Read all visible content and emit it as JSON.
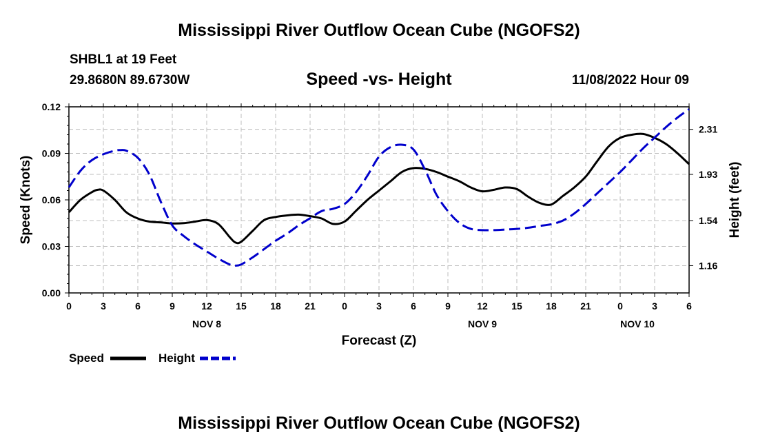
{
  "page": {
    "title": "Mississippi River Outflow Ocean Cube (NGOFS2)",
    "title_repeat": "Mississippi River Outflow Ocean Cube (NGOFS2)",
    "station": "SHBL1 at 19 Feet",
    "location": "29.8680N  89.6730W",
    "date": "11/08/2022 Hour 09"
  },
  "chart_data": {
    "type": "line",
    "title": "Speed -vs- Height",
    "xlabel": "Forecast (Z)",
    "ylabel": "Speed (Knots)",
    "y2label": "Height (feet)",
    "x_range_hours": [
      0,
      54
    ],
    "ylim": [
      0,
      0.12
    ],
    "y2lim": [
      0.93,
      2.5
    ],
    "x_ticks": [
      {
        "hour": 0,
        "label": "0"
      },
      {
        "hour": 3,
        "label": "3"
      },
      {
        "hour": 6,
        "label": "6"
      },
      {
        "hour": 9,
        "label": "9"
      },
      {
        "hour": 12,
        "label": "12"
      },
      {
        "hour": 15,
        "label": "15"
      },
      {
        "hour": 18,
        "label": "18"
      },
      {
        "hour": 21,
        "label": "21"
      },
      {
        "hour": 24,
        "label": "0"
      },
      {
        "hour": 27,
        "label": "3"
      },
      {
        "hour": 30,
        "label": "6"
      },
      {
        "hour": 33,
        "label": "9"
      },
      {
        "hour": 36,
        "label": "12"
      },
      {
        "hour": 39,
        "label": "15"
      },
      {
        "hour": 42,
        "label": "18"
      },
      {
        "hour": 45,
        "label": "21"
      },
      {
        "hour": 48,
        "label": "0"
      },
      {
        "hour": 51,
        "label": "3"
      },
      {
        "hour": 54,
        "label": "6"
      }
    ],
    "date_labels": [
      {
        "hour": 12,
        "label": "NOV 8"
      },
      {
        "hour": 36,
        "label": "NOV 9"
      },
      {
        "hour": 49.5,
        "label": "NOV 10"
      }
    ],
    "y_ticks": [
      {
        "value": 0.0,
        "label": "0.00"
      },
      {
        "value": 0.03,
        "label": "0.03"
      },
      {
        "value": 0.06,
        "label": "0.06"
      },
      {
        "value": 0.09,
        "label": "0.09"
      },
      {
        "value": 0.12,
        "label": "0.12"
      }
    ],
    "y2_ticks": [
      {
        "value": 1.16,
        "label": "1.16"
      },
      {
        "value": 1.54,
        "label": "1.54"
      },
      {
        "value": 1.93,
        "label": "1.93"
      },
      {
        "value": 2.31,
        "label": "2.31"
      }
    ],
    "series": [
      {
        "name": "Speed",
        "axis": "left",
        "color": "#000000",
        "dash": "solid",
        "x": [
          0,
          1,
          2,
          2.5,
          3,
          4,
          5,
          6,
          7,
          8,
          9,
          10,
          11,
          12,
          13,
          14,
          14.5,
          15,
          16,
          17,
          18,
          19,
          20,
          21,
          22,
          23,
          24,
          25,
          26,
          27,
          28,
          29,
          30,
          31,
          32,
          33,
          34,
          35,
          36,
          37,
          38,
          39,
          40,
          41,
          42,
          43,
          44,
          45,
          46,
          47,
          48,
          49,
          50,
          51,
          52,
          53,
          54
        ],
        "values": [
          0.052,
          0.06,
          0.065,
          0.0665,
          0.066,
          0.06,
          0.052,
          0.048,
          0.046,
          0.0455,
          0.0448,
          0.045,
          0.046,
          0.047,
          0.0445,
          0.036,
          0.0325,
          0.033,
          0.04,
          0.047,
          0.049,
          0.05,
          0.0505,
          0.0495,
          0.048,
          0.0445,
          0.046,
          0.053,
          0.06,
          0.066,
          0.072,
          0.078,
          0.0805,
          0.08,
          0.078,
          0.075,
          0.072,
          0.068,
          0.0655,
          0.0665,
          0.068,
          0.067,
          0.062,
          0.058,
          0.057,
          0.0625,
          0.068,
          0.075,
          0.085,
          0.0945,
          0.1,
          0.102,
          0.1025,
          0.1,
          0.096,
          0.09,
          0.083
        ]
      },
      {
        "name": "Height",
        "axis": "right",
        "color": "#0000cc",
        "dash": "dashed",
        "x": [
          0,
          1,
          2,
          3,
          4,
          4.5,
          5,
          6,
          7,
          8,
          9,
          10,
          11,
          12,
          13,
          14,
          14.5,
          15,
          16,
          17,
          18,
          19,
          20,
          21,
          22,
          23,
          24,
          25,
          26,
          27,
          28,
          29,
          30,
          31,
          32,
          33,
          34,
          35,
          36,
          37,
          38,
          39,
          40,
          41,
          42,
          43,
          44,
          45,
          46,
          47,
          48,
          49,
          50,
          51,
          52,
          53,
          54
        ],
        "values": [
          1.82,
          1.96,
          2.05,
          2.1,
          2.13,
          2.135,
          2.13,
          2.07,
          1.93,
          1.7,
          1.5,
          1.41,
          1.34,
          1.28,
          1.22,
          1.17,
          1.16,
          1.17,
          1.23,
          1.3,
          1.37,
          1.43,
          1.5,
          1.56,
          1.62,
          1.64,
          1.68,
          1.78,
          1.92,
          2.08,
          2.16,
          2.18,
          2.14,
          1.97,
          1.76,
          1.62,
          1.52,
          1.47,
          1.46,
          1.46,
          1.465,
          1.47,
          1.48,
          1.495,
          1.51,
          1.54,
          1.6,
          1.68,
          1.77,
          1.86,
          1.95,
          2.05,
          2.15,
          2.24,
          2.33,
          2.41,
          2.48
        ]
      }
    ],
    "legend": [
      {
        "name": "Speed",
        "color": "#000000",
        "dash": "solid"
      },
      {
        "name": "Height",
        "color": "#0000cc",
        "dash": "dashed"
      }
    ],
    "legend_placement": "bottom-left",
    "grid": true
  }
}
